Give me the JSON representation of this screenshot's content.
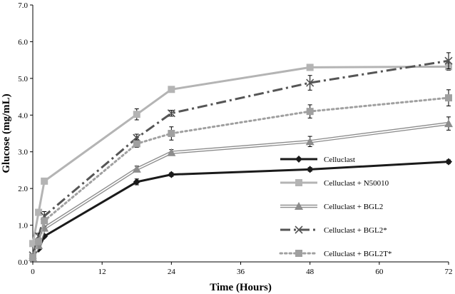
{
  "chart_data": {
    "type": "line",
    "title": "",
    "xlabel": "Time (Hours)",
    "ylabel": "Glucose (mg/mL)",
    "xlim": [
      0,
      72
    ],
    "ylim": [
      0,
      7
    ],
    "xticks": [
      0,
      12,
      24,
      36,
      48,
      60,
      72
    ],
    "yticks": [
      0.0,
      1.0,
      2.0,
      3.0,
      4.0,
      5.0,
      6.0,
      7.0
    ],
    "xtick_labels": [
      "0",
      "12",
      "24",
      "36",
      "48",
      "60",
      "72"
    ],
    "ytick_labels": [
      "0.0",
      "1.0",
      "2.0",
      "3.0",
      "4.0",
      "5.0",
      "6.0",
      "7.0"
    ],
    "legend_position": "bottom-right",
    "series": [
      {
        "name": "Celluclast",
        "color": "#1a1a1a",
        "dash": "solid",
        "marker": "diamond",
        "x": [
          0,
          1,
          2,
          18,
          24,
          48,
          72
        ],
        "values": [
          0.15,
          0.35,
          0.7,
          2.18,
          2.38,
          2.52,
          2.73
        ],
        "errors": [
          0.03,
          0.03,
          0.04,
          0.08,
          0.05,
          0.05,
          0.05
        ]
      },
      {
        "name": "Celluclast + N50010",
        "color": "#b4b4b4",
        "dash": "solid",
        "marker": "square",
        "x": [
          0,
          1,
          2,
          18,
          24,
          48,
          72
        ],
        "values": [
          0.5,
          1.35,
          2.2,
          4.02,
          4.7,
          5.3,
          5.32
        ],
        "errors": [
          0.05,
          0.05,
          0.08,
          0.15,
          0.06,
          0.07,
          0.1
        ]
      },
      {
        "name": "Celluclast + BGL2",
        "color": "#8c8c8c",
        "dash": "double",
        "marker": "triangle",
        "x": [
          0,
          1,
          2,
          18,
          24,
          48,
          72
        ],
        "values": [
          0.12,
          0.45,
          0.92,
          2.53,
          2.98,
          3.28,
          3.77
        ],
        "errors": [
          0.03,
          0.04,
          0.05,
          0.08,
          0.08,
          0.14,
          0.18
        ]
      },
      {
        "name": "Celluclast + BGL2*",
        "color": "#555555",
        "dash": "dashdot",
        "marker": "x",
        "x": [
          0,
          1,
          2,
          18,
          24,
          48,
          72
        ],
        "values": [
          0.18,
          0.7,
          1.25,
          3.38,
          4.05,
          4.88,
          5.48
        ],
        "errors": [
          0.04,
          0.08,
          0.12,
          0.1,
          0.08,
          0.2,
          0.22
        ]
      },
      {
        "name": "Celluclast + BGL2T*",
        "color": "#a0a0a0",
        "dash": "dotted",
        "marker": "square",
        "x": [
          0,
          1,
          2,
          18,
          24,
          48,
          72
        ],
        "values": [
          0.13,
          0.55,
          1.12,
          3.22,
          3.5,
          4.1,
          4.47
        ],
        "errors": [
          0.03,
          0.05,
          0.07,
          0.1,
          0.18,
          0.18,
          0.22
        ]
      }
    ]
  }
}
